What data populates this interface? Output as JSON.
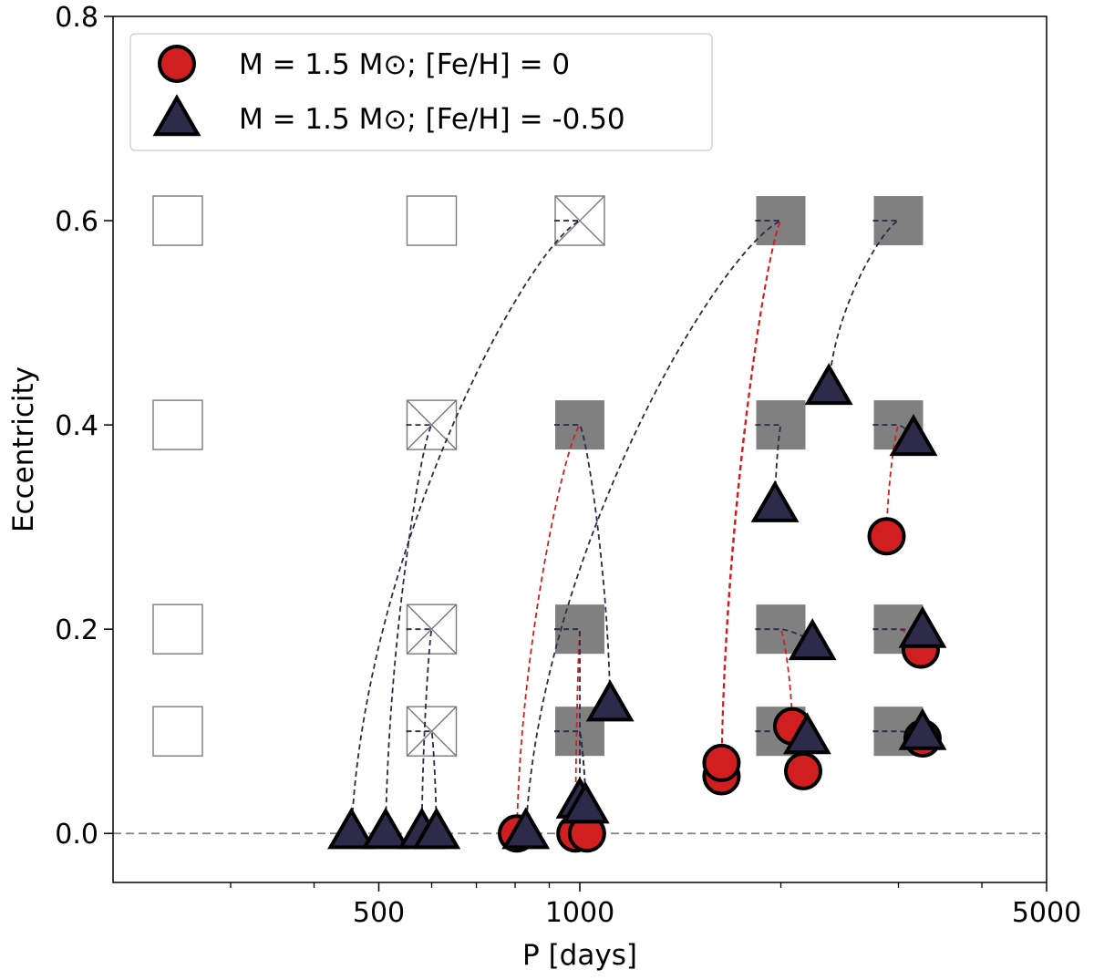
{
  "chart_data": {
    "type": "scatter",
    "xlabel": "P [days]",
    "ylabel": "Eccentricity",
    "xscale": "log",
    "xlim": [
      200,
      5000
    ],
    "ylim": [
      -0.048,
      0.8
    ],
    "xticks": [
      {
        "value": 500,
        "label": "500"
      },
      {
        "value": 1000,
        "label": "1000"
      },
      {
        "value": 5000,
        "label": "5000"
      }
    ],
    "yticks": [
      {
        "value": 0.0,
        "label": "0.0"
      },
      {
        "value": 0.2,
        "label": "0.2"
      },
      {
        "value": 0.4,
        "label": "0.4"
      },
      {
        "value": 0.6,
        "label": "0.6"
      },
      {
        "value": 0.8,
        "label": "0.8"
      }
    ],
    "reference_line": {
      "y": 0.0,
      "style": "dashed",
      "color": "#808080"
    },
    "legend": {
      "position": "upper-left",
      "entries": [
        {
          "marker": "circle",
          "label": "M = 1.5 M⊙;  [Fe/H] = 0",
          "color": "#d11f1f"
        },
        {
          "marker": "triangle",
          "label": "M = 1.5 M⊙;  [Fe/H] = -0.50",
          "color": "#2d2a4a"
        }
      ]
    },
    "initial_squares": [
      {
        "P": 250,
        "e": 0.6,
        "style": "empty"
      },
      {
        "P": 250,
        "e": 0.4,
        "style": "empty"
      },
      {
        "P": 250,
        "e": 0.2,
        "style": "empty"
      },
      {
        "P": 250,
        "e": 0.1,
        "style": "empty"
      },
      {
        "P": 600,
        "e": 0.6,
        "style": "empty"
      },
      {
        "P": 600,
        "e": 0.4,
        "style": "crossed"
      },
      {
        "P": 600,
        "e": 0.2,
        "style": "crossed"
      },
      {
        "P": 600,
        "e": 0.1,
        "style": "crossed"
      },
      {
        "P": 1000,
        "e": 0.6,
        "style": "crossed"
      },
      {
        "P": 1000,
        "e": 0.4,
        "style": "filled"
      },
      {
        "P": 1000,
        "e": 0.2,
        "style": "filled"
      },
      {
        "P": 1000,
        "e": 0.1,
        "style": "filled"
      },
      {
        "P": 2000,
        "e": 0.6,
        "style": "filled"
      },
      {
        "P": 2000,
        "e": 0.4,
        "style": "filled"
      },
      {
        "P": 2000,
        "e": 0.2,
        "style": "filled"
      },
      {
        "P": 2000,
        "e": 0.1,
        "style": "filled"
      },
      {
        "P": 3000,
        "e": 0.6,
        "style": "filled"
      },
      {
        "P": 3000,
        "e": 0.4,
        "style": "filled"
      },
      {
        "P": 3000,
        "e": 0.2,
        "style": "filled"
      },
      {
        "P": 3000,
        "e": 0.1,
        "style": "filled"
      }
    ],
    "series": [
      {
        "name": "M = 1.5 M⊙;  [Fe/H] = 0",
        "marker": "circle",
        "color": "#d11f1f",
        "points": [
          {
            "P": 805,
            "e": 0.0,
            "P0": 1000,
            "e0": 0.4
          },
          {
            "P": 985,
            "e": 0.0,
            "P0": 1000,
            "e0": 0.2
          },
          {
            "P": 1025,
            "e": 0.0,
            "P0": 1000,
            "e0": 0.1
          },
          {
            "P": 1630,
            "e": 0.056,
            "P0": 2000,
            "e0": 0.6
          },
          {
            "P": 1630,
            "e": 0.069,
            "P0": 2000,
            "e0": 0.6
          },
          {
            "P": 2080,
            "e": 0.105,
            "P0": 2000,
            "e0": 0.2
          },
          {
            "P": 2160,
            "e": 0.061,
            "P0": 2000,
            "e0": 0.1
          },
          {
            "P": 2880,
            "e": 0.291,
            "P0": 3000,
            "e0": 0.4
          },
          {
            "P": 3240,
            "e": 0.18,
            "P0": 3000,
            "e0": 0.2
          },
          {
            "P": 3260,
            "e": 0.093,
            "P0": 3000,
            "e0": 0.1
          }
        ]
      },
      {
        "name": "M = 1.5 M⊙;  [Fe/H] = -0.50",
        "marker": "triangle",
        "color": "#2d2a4a",
        "points": [
          {
            "P": 455,
            "e": 0.0,
            "P0": 1000,
            "e0": 0.6
          },
          {
            "P": 512,
            "e": 0.0,
            "P0": 600,
            "e0": 0.4
          },
          {
            "P": 580,
            "e": 0.0,
            "P0": 600,
            "e0": 0.2
          },
          {
            "P": 610,
            "e": 0.0,
            "P0": 600,
            "e0": 0.1
          },
          {
            "P": 830,
            "e": 0.0,
            "P0": 2000,
            "e0": 0.6
          },
          {
            "P": 1000,
            "e": 0.03,
            "P0": 1000,
            "e0": 0.2
          },
          {
            "P": 1020,
            "e": 0.025,
            "P0": 1000,
            "e0": 0.1
          },
          {
            "P": 1110,
            "e": 0.125,
            "P0": 1000,
            "e0": 0.4
          },
          {
            "P": 1960,
            "e": 0.32,
            "P0": 2000,
            "e0": 0.4
          },
          {
            "P": 2190,
            "e": 0.093,
            "P0": 2000,
            "e0": 0.1
          },
          {
            "P": 2230,
            "e": 0.185,
            "P0": 2000,
            "e0": 0.2
          },
          {
            "P": 2360,
            "e": 0.435,
            "P0": 3000,
            "e0": 0.6
          },
          {
            "P": 3160,
            "e": 0.385,
            "P0": 3000,
            "e0": 0.4
          },
          {
            "P": 3260,
            "e": 0.197,
            "P0": 3000,
            "e0": 0.2
          },
          {
            "P": 3260,
            "e": 0.097,
            "P0": 3000,
            "e0": 0.1
          }
        ]
      }
    ]
  },
  "colors": {
    "red": "#d11f1f",
    "navy": "#2d2a4a",
    "square_fill": "#808080",
    "square_edge": "#7a7a7a",
    "zero_line": "#808080"
  }
}
